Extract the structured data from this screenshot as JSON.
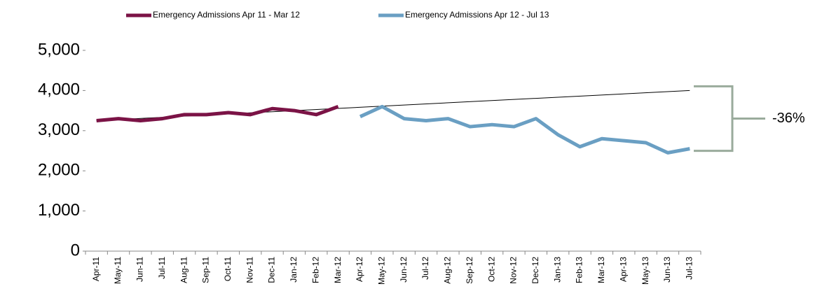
{
  "chart_data": {
    "type": "line",
    "categories": [
      "Apr-11",
      "May-11",
      "Jun-11",
      "Jul-11",
      "Aug-11",
      "Sep-11",
      "Oct-11",
      "Nov-11",
      "Dec-11",
      "Jan-12",
      "Feb-12",
      "Mar-12",
      "Apr-12",
      "May-12",
      "Jun-12",
      "Jul-12",
      "Aug-12",
      "Sep-12",
      "Oct-12",
      "Nov-12",
      "Dec-12",
      "Jan-13",
      "Feb-13",
      "Mar-13",
      "Apr-13",
      "May-13",
      "Jun-13",
      "Jul-13"
    ],
    "series": [
      {
        "name": "Emergency Admissions Apr 11 - Mar 12",
        "color": "#7b1346",
        "values": [
          3250,
          3300,
          3250,
          3300,
          3400,
          3400,
          3450,
          3400,
          3550,
          3500,
          3400,
          3600,
          null,
          null,
          null,
          null,
          null,
          null,
          null,
          null,
          null,
          null,
          null,
          null,
          null,
          null,
          null,
          null
        ]
      },
      {
        "name": "Emergency Admissions Apr 12 - Jul 13",
        "color": "#6a9fc3",
        "values": [
          null,
          null,
          null,
          null,
          null,
          null,
          null,
          null,
          null,
          null,
          null,
          null,
          3350,
          3600,
          3300,
          3250,
          3300,
          3100,
          3150,
          3100,
          3300,
          2900,
          2600,
          2800,
          2750,
          2700,
          2450,
          2550
        ]
      }
    ],
    "trendline": [
      3250,
      4000
    ],
    "annotation": "-36%",
    "ylim": [
      0,
      5000
    ],
    "yticks": [
      0,
      {
        "value": 1000,
        "label": "1,000"
      },
      {
        "value": 2000,
        "label": "2,000"
      },
      {
        "value": 3000,
        "label": "3,000"
      },
      {
        "value": 4000,
        "label": "4,000"
      },
      {
        "value": 5000,
        "label": "5,000"
      }
    ],
    "legend": "top"
  }
}
